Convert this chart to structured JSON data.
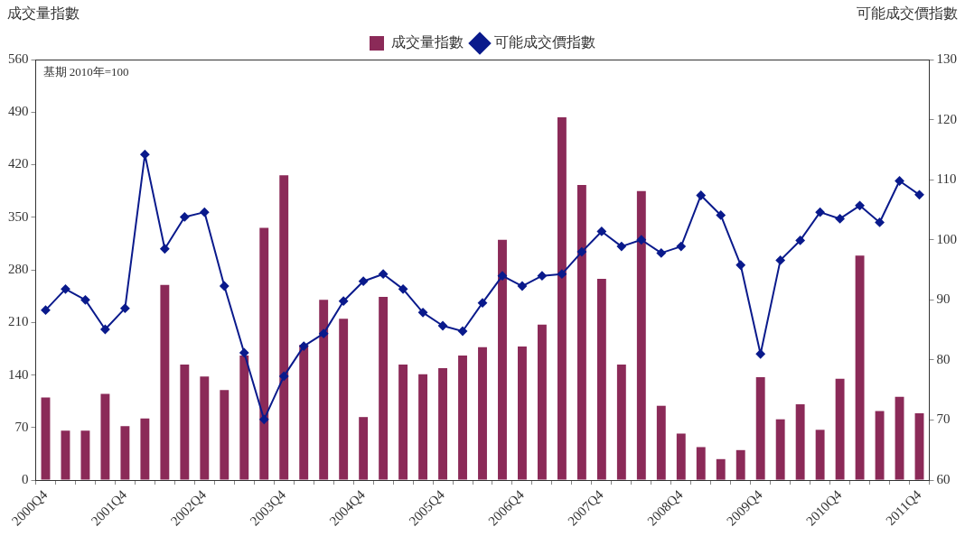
{
  "chart_data": {
    "type": "bar",
    "ylabel": "成交量指數",
    "y2label": "可能成交價指數",
    "annotations": [
      "基期 2010年=100"
    ],
    "categories": [
      "2000Q4",
      null,
      null,
      null,
      "2001Q4",
      null,
      null,
      null,
      "2002Q4",
      null,
      null,
      null,
      "2003Q4",
      null,
      null,
      null,
      "2004Q4",
      null,
      null,
      null,
      "2005Q4",
      null,
      null,
      null,
      "2006Q4",
      null,
      null,
      null,
      "2007Q4",
      null,
      null,
      null,
      "2008Q4",
      null,
      null,
      null,
      "2009Q4",
      null,
      null,
      null,
      "2010Q4",
      null,
      null,
      null,
      "2011Q4"
    ],
    "series": [
      {
        "name": "成交量指數",
        "color": "#8b2a58",
        "values": [
          110,
          66,
          66,
          115,
          72,
          82,
          260,
          154,
          138,
          120,
          166,
          336,
          406,
          180,
          240,
          215,
          84,
          244,
          154,
          141,
          149,
          166,
          177,
          320,
          178,
          207,
          483,
          393,
          268,
          154,
          385,
          99,
          62,
          44,
          28,
          40,
          137,
          81,
          101,
          67,
          135,
          299,
          92,
          111,
          89
        ]
      },
      {
        "name": "可能成交價指數",
        "type": "line",
        "axis": "y2",
        "color": "#0a1a8c",
        "values": [
          88.3,
          91.8,
          90.0,
          85.1,
          88.6,
          114.2,
          98.5,
          103.8,
          104.6,
          92.3,
          81.2,
          70.1,
          77.3,
          82.3,
          84.4,
          89.8,
          93.1,
          94.3,
          91.8,
          87.9,
          85.7,
          84.8,
          89.5,
          94.0,
          92.3,
          94.0,
          94.3,
          98.0,
          101.4,
          98.9,
          100.0,
          97.8,
          98.9,
          107.4,
          104.1,
          95.8,
          81.0,
          96.6,
          99.9,
          104.6,
          103.5,
          105.7,
          102.9,
          109.8,
          107.5
        ]
      }
    ],
    "ylim": [
      0,
      560
    ],
    "yticks": [
      0,
      70,
      140,
      210,
      280,
      350,
      420,
      490,
      560
    ],
    "y2lim": [
      60,
      130
    ],
    "y2ticks": [
      60,
      70,
      80,
      90,
      100,
      110,
      120,
      130
    ],
    "grid": false,
    "legend": "top",
    "marker": "diamond",
    "line_style": "solid"
  }
}
